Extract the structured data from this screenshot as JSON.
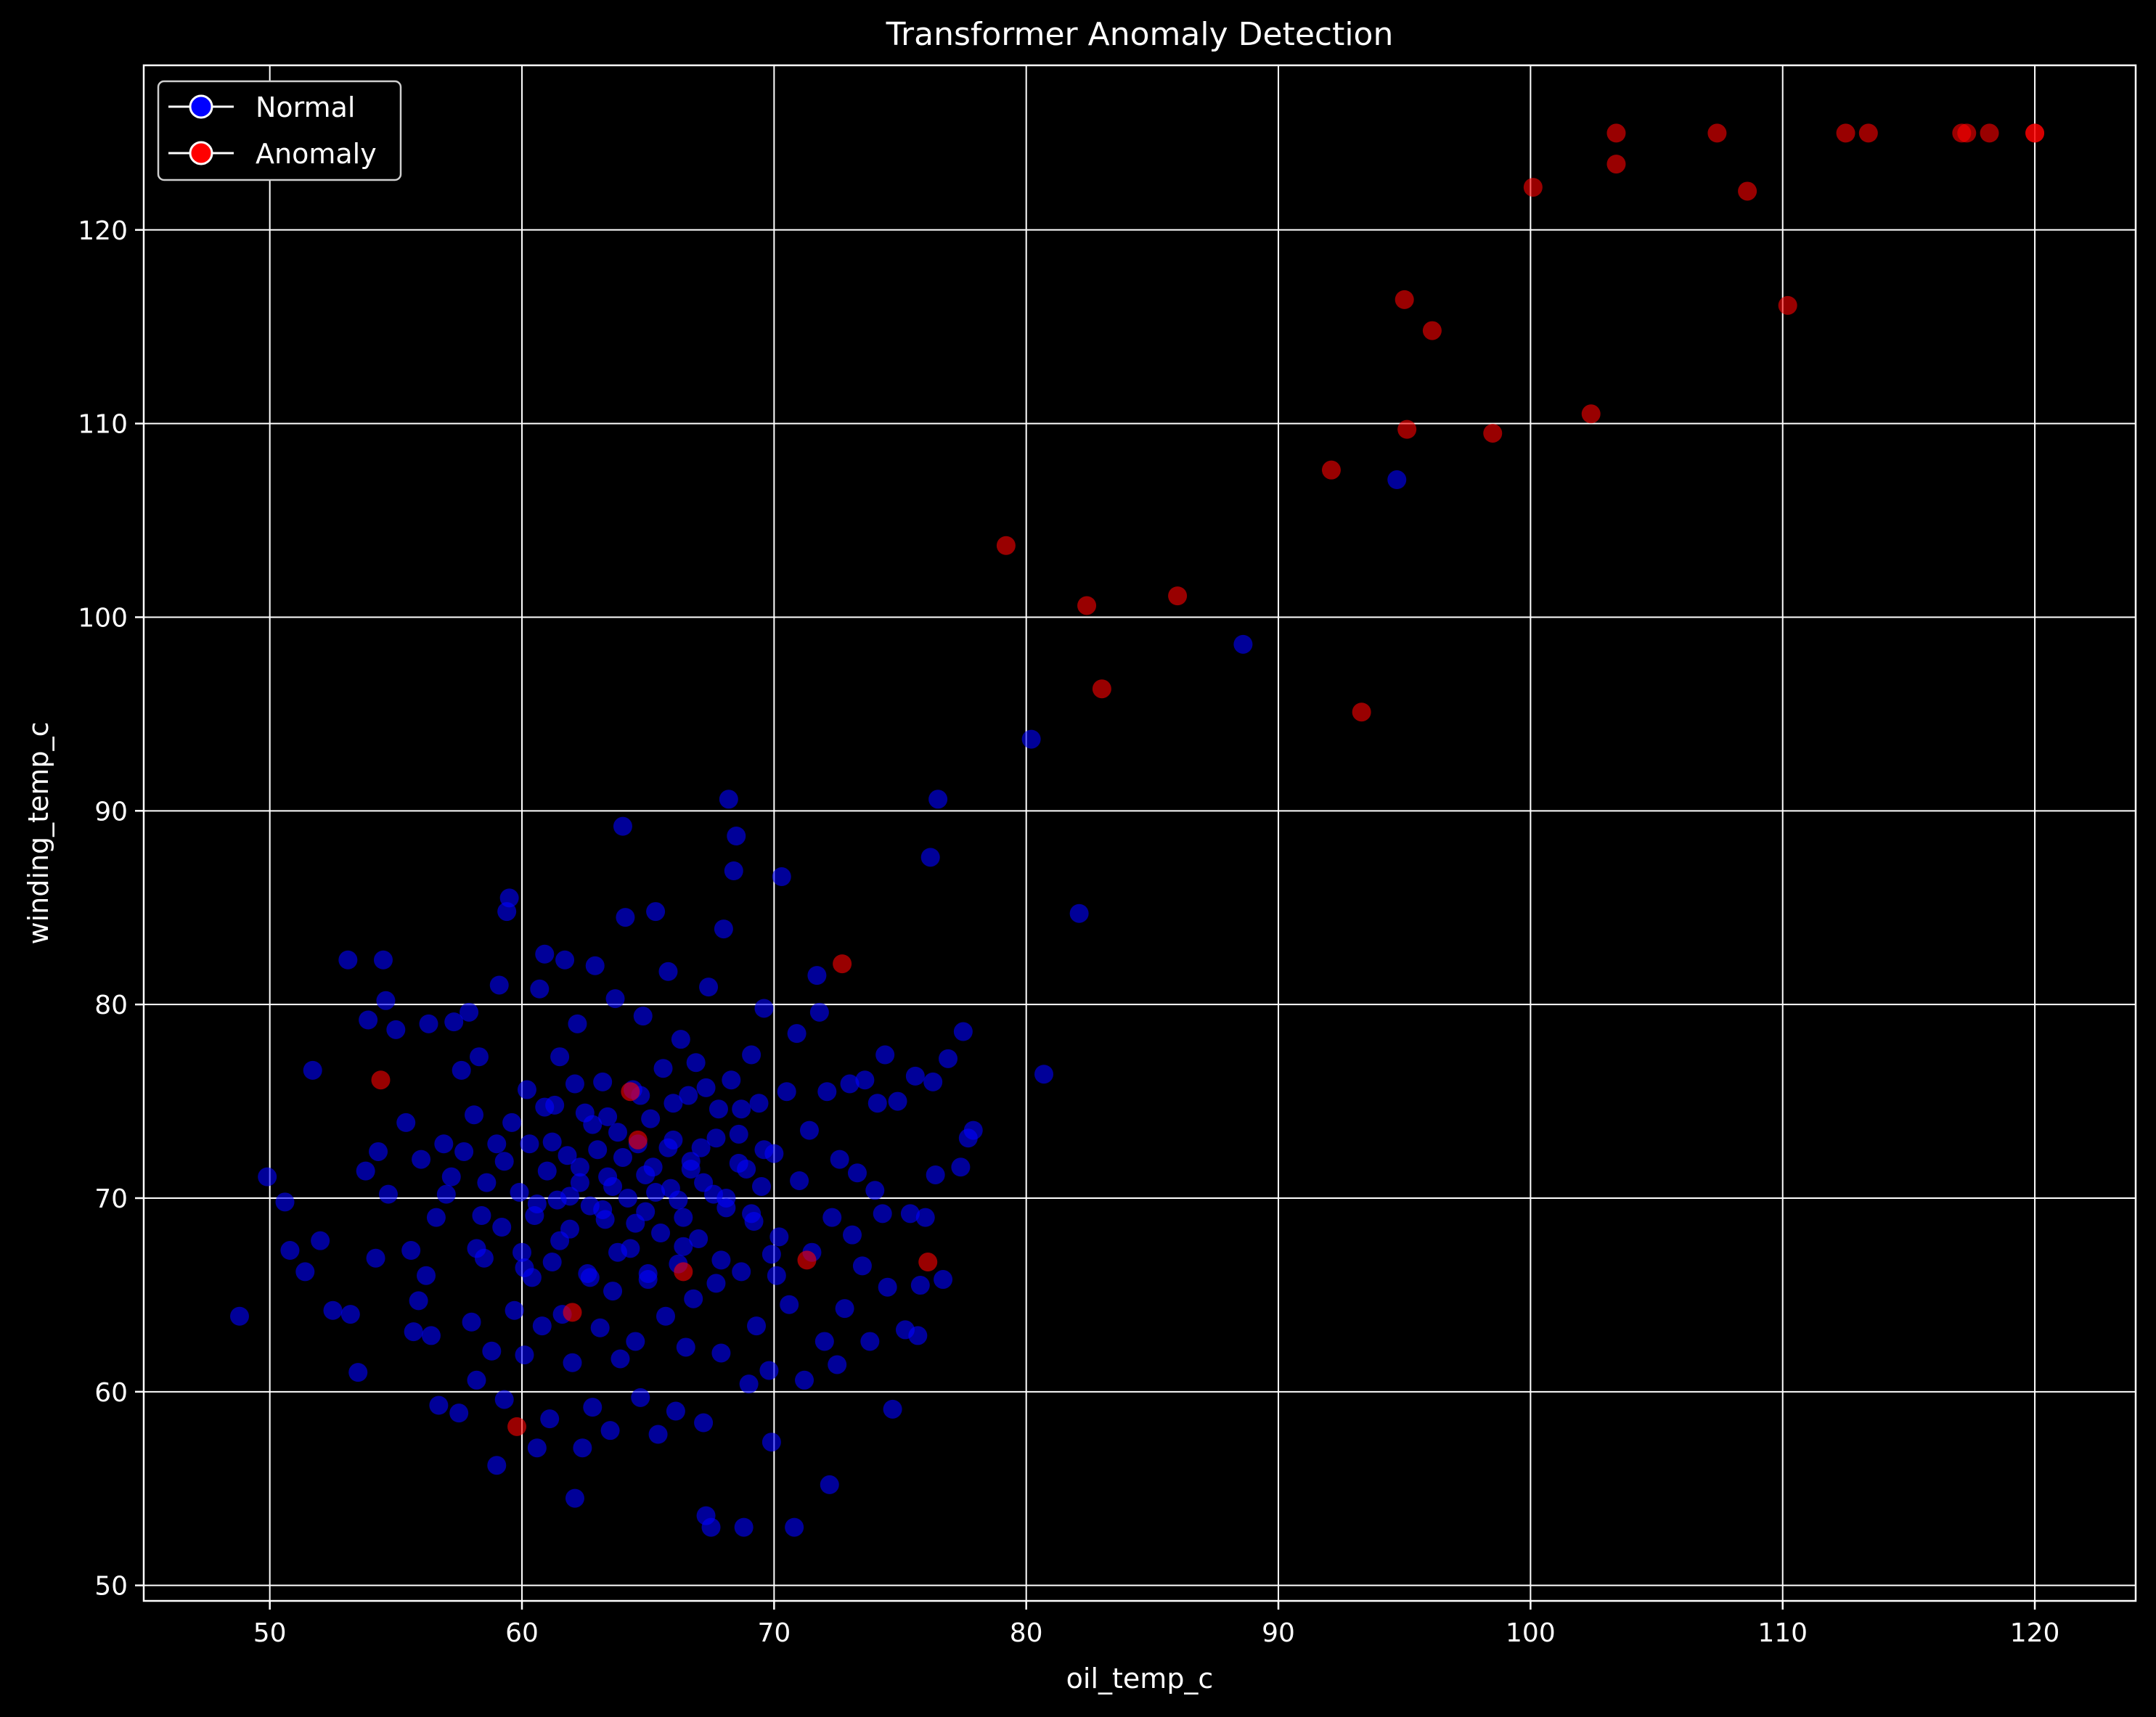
{
  "chart_data": {
    "type": "scatter",
    "title": "Transformer Anomaly Detection",
    "xlabel": "oil_temp_c",
    "ylabel": "winding_temp_c",
    "xlim": [
      45,
      124
    ],
    "ylim": [
      49.2,
      128.5
    ],
    "xticks": [
      50,
      60,
      70,
      80,
      90,
      100,
      110,
      120
    ],
    "yticks": [
      50,
      60,
      70,
      80,
      90,
      100,
      110,
      120
    ],
    "grid": true,
    "legend_position": "top-left",
    "background": "#000000",
    "series": [
      {
        "name": "Normal",
        "color": "#0000ff",
        "points": [
          [
            48.8,
            63.9
          ],
          [
            49.9,
            71.1
          ],
          [
            50.6,
            69.8
          ],
          [
            50.8,
            67.3
          ],
          [
            51.4,
            66.2
          ],
          [
            51.7,
            76.6
          ],
          [
            52.0,
            67.8
          ],
          [
            52.5,
            64.2
          ],
          [
            53.1,
            82.3
          ],
          [
            53.2,
            64.0
          ],
          [
            53.5,
            61.0
          ],
          [
            53.8,
            71.4
          ],
          [
            53.9,
            79.2
          ],
          [
            54.2,
            66.9
          ],
          [
            54.3,
            72.4
          ],
          [
            54.5,
            82.3
          ],
          [
            54.6,
            80.2
          ],
          [
            54.7,
            70.2
          ],
          [
            55.0,
            78.7
          ],
          [
            55.4,
            73.9
          ],
          [
            55.6,
            67.3
          ],
          [
            55.7,
            63.1
          ],
          [
            55.9,
            64.7
          ],
          [
            56.0,
            72.0
          ],
          [
            56.2,
            66.0
          ],
          [
            56.3,
            79.0
          ],
          [
            56.4,
            62.9
          ],
          [
            56.6,
            69.0
          ],
          [
            56.7,
            59.3
          ],
          [
            56.9,
            72.8
          ],
          [
            57.2,
            71.1
          ],
          [
            57.3,
            79.1
          ],
          [
            57.5,
            58.9
          ],
          [
            57.6,
            76.6
          ],
          [
            57.7,
            72.4
          ],
          [
            57.9,
            79.6
          ],
          [
            58.0,
            63.6
          ],
          [
            58.1,
            74.3
          ],
          [
            58.2,
            60.6
          ],
          [
            58.3,
            77.3
          ],
          [
            58.5,
            66.9
          ],
          [
            58.6,
            70.8
          ],
          [
            58.8,
            62.1
          ],
          [
            59.0,
            56.2
          ],
          [
            59.1,
            81.0
          ],
          [
            59.2,
            68.5
          ],
          [
            59.3,
            59.6
          ],
          [
            59.4,
            84.8
          ],
          [
            59.5,
            85.5
          ],
          [
            59.6,
            73.9
          ],
          [
            59.7,
            64.2
          ],
          [
            59.9,
            70.3
          ],
          [
            60.0,
            67.2
          ],
          [
            60.1,
            61.9
          ],
          [
            60.2,
            75.6
          ],
          [
            60.3,
            72.8
          ],
          [
            60.4,
            65.9
          ],
          [
            60.5,
            69.1
          ],
          [
            60.6,
            57.1
          ],
          [
            60.7,
            80.8
          ],
          [
            60.8,
            63.4
          ],
          [
            60.9,
            82.6
          ],
          [
            61.0,
            71.4
          ],
          [
            61.1,
            58.6
          ],
          [
            61.2,
            66.7
          ],
          [
            61.3,
            74.8
          ],
          [
            61.4,
            69.9
          ],
          [
            61.5,
            77.3
          ],
          [
            61.6,
            64.0
          ],
          [
            61.7,
            82.3
          ],
          [
            61.8,
            72.2
          ],
          [
            61.9,
            68.4
          ],
          [
            62.0,
            61.5
          ],
          [
            62.1,
            54.5
          ],
          [
            62.2,
            79.0
          ],
          [
            62.3,
            70.8
          ],
          [
            62.4,
            57.1
          ],
          [
            62.5,
            74.4
          ],
          [
            62.6,
            66.1
          ],
          [
            62.7,
            69.6
          ],
          [
            62.8,
            59.2
          ],
          [
            62.9,
            82.0
          ],
          [
            63.0,
            72.5
          ],
          [
            63.1,
            63.3
          ],
          [
            63.2,
            76.0
          ],
          [
            63.3,
            68.9
          ],
          [
            63.4,
            71.1
          ],
          [
            63.5,
            58.0
          ],
          [
            63.6,
            65.2
          ],
          [
            63.7,
            80.3
          ],
          [
            63.8,
            73.4
          ],
          [
            63.9,
            61.7
          ],
          [
            64.0,
            89.2
          ],
          [
            64.1,
            84.5
          ],
          [
            64.2,
            70.0
          ],
          [
            64.3,
            67.4
          ],
          [
            64.4,
            75.6
          ],
          [
            64.5,
            62.6
          ],
          [
            64.6,
            72.8
          ],
          [
            64.7,
            59.7
          ],
          [
            64.8,
            79.4
          ],
          [
            64.9,
            69.3
          ],
          [
            65.0,
            65.8
          ],
          [
            65.1,
            74.1
          ],
          [
            65.2,
            71.6
          ],
          [
            65.3,
            84.8
          ],
          [
            65.4,
            57.8
          ],
          [
            65.5,
            68.2
          ],
          [
            65.6,
            76.7
          ],
          [
            65.7,
            63.9
          ],
          [
            65.8,
            81.7
          ],
          [
            65.9,
            70.5
          ],
          [
            66.0,
            73.0
          ],
          [
            66.1,
            59.0
          ],
          [
            66.2,
            66.6
          ],
          [
            66.3,
            78.2
          ],
          [
            66.4,
            69.0
          ],
          [
            66.5,
            62.3
          ],
          [
            66.6,
            75.3
          ],
          [
            66.7,
            71.9
          ],
          [
            66.8,
            64.8
          ],
          [
            66.9,
            77.0
          ],
          [
            67.0,
            67.9
          ],
          [
            67.1,
            72.6
          ],
          [
            67.2,
            58.4
          ],
          [
            67.3,
            53.6
          ],
          [
            67.4,
            80.9
          ],
          [
            67.5,
            53.0
          ],
          [
            67.6,
            70.2
          ],
          [
            67.7,
            65.6
          ],
          [
            67.8,
            74.6
          ],
          [
            67.9,
            62.0
          ],
          [
            68.0,
            83.9
          ],
          [
            68.1,
            69.5
          ],
          [
            68.2,
            90.6
          ],
          [
            68.3,
            76.1
          ],
          [
            68.4,
            86.9
          ],
          [
            68.5,
            88.7
          ],
          [
            68.6,
            73.3
          ],
          [
            68.7,
            66.2
          ],
          [
            68.8,
            53.0
          ],
          [
            68.9,
            71.5
          ],
          [
            69.0,
            60.4
          ],
          [
            69.1,
            77.4
          ],
          [
            69.2,
            68.8
          ],
          [
            69.3,
            63.4
          ],
          [
            69.4,
            74.9
          ],
          [
            69.5,
            70.6
          ],
          [
            69.6,
            79.8
          ],
          [
            69.8,
            61.1
          ],
          [
            69.9,
            57.4
          ],
          [
            70.0,
            72.3
          ],
          [
            70.1,
            66.0
          ],
          [
            70.2,
            68.0
          ],
          [
            70.3,
            86.6
          ],
          [
            70.5,
            75.5
          ],
          [
            70.6,
            64.5
          ],
          [
            70.8,
            53.0
          ],
          [
            70.9,
            78.5
          ],
          [
            71.0,
            70.9
          ],
          [
            71.2,
            60.6
          ],
          [
            71.4,
            73.5
          ],
          [
            71.5,
            67.2
          ],
          [
            71.7,
            81.5
          ],
          [
            71.8,
            79.6
          ],
          [
            72.0,
            62.6
          ],
          [
            72.1,
            75.5
          ],
          [
            72.2,
            55.2
          ],
          [
            72.3,
            69.0
          ],
          [
            72.5,
            61.4
          ],
          [
            72.6,
            72.0
          ],
          [
            72.8,
            64.3
          ],
          [
            73.0,
            75.9
          ],
          [
            73.1,
            68.1
          ],
          [
            73.3,
            71.3
          ],
          [
            73.5,
            66.5
          ],
          [
            73.6,
            76.1
          ],
          [
            73.8,
            62.6
          ],
          [
            74.0,
            70.4
          ],
          [
            74.1,
            74.9
          ],
          [
            74.3,
            69.2
          ],
          [
            74.4,
            77.4
          ],
          [
            74.5,
            65.4
          ],
          [
            74.7,
            59.1
          ],
          [
            74.9,
            75.0
          ],
          [
            75.2,
            63.2
          ],
          [
            75.4,
            69.2
          ],
          [
            75.6,
            76.3
          ],
          [
            75.7,
            62.9
          ],
          [
            75.8,
            65.5
          ],
          [
            76.0,
            69.0
          ],
          [
            76.2,
            87.6
          ],
          [
            76.3,
            76.0
          ],
          [
            76.4,
            71.2
          ],
          [
            76.5,
            90.6
          ],
          [
            76.7,
            65.8
          ],
          [
            76.9,
            77.2
          ],
          [
            77.4,
            71.6
          ],
          [
            77.5,
            78.6
          ],
          [
            77.7,
            73.1
          ],
          [
            77.9,
            73.5
          ],
          [
            80.2,
            93.7
          ],
          [
            80.7,
            76.4
          ],
          [
            82.1,
            84.7
          ],
          [
            88.6,
            98.6
          ],
          [
            94.7,
            107.1
          ],
          [
            57.0,
            70.2
          ],
          [
            58.4,
            69.1
          ],
          [
            59.3,
            71.9
          ],
          [
            60.6,
            69.7
          ],
          [
            61.2,
            72.9
          ],
          [
            61.9,
            70.1
          ],
          [
            62.3,
            71.6
          ],
          [
            62.8,
            73.8
          ],
          [
            63.2,
            69.4
          ],
          [
            63.6,
            70.6
          ],
          [
            64.0,
            72.1
          ],
          [
            64.5,
            68.7
          ],
          [
            64.9,
            71.2
          ],
          [
            65.3,
            70.3
          ],
          [
            65.8,
            72.6
          ],
          [
            66.2,
            69.9
          ],
          [
            66.7,
            71.5
          ],
          [
            67.2,
            70.8
          ],
          [
            67.7,
            73.1
          ],
          [
            68.1,
            70.0
          ],
          [
            68.6,
            71.8
          ],
          [
            69.1,
            69.2
          ],
          [
            69.6,
            72.5
          ],
          [
            60.1,
            66.4
          ],
          [
            61.5,
            67.8
          ],
          [
            62.7,
            65.9
          ],
          [
            63.8,
            67.2
          ],
          [
            65.0,
            66.1
          ],
          [
            66.4,
            67.5
          ],
          [
            67.9,
            66.8
          ],
          [
            60.9,
            74.7
          ],
          [
            62.1,
            75.9
          ],
          [
            63.4,
            74.2
          ],
          [
            64.7,
            75.3
          ],
          [
            66.0,
            74.9
          ],
          [
            67.3,
            75.7
          ],
          [
            68.7,
            74.6
          ],
          [
            59.0,
            72.8
          ],
          [
            58.2,
            67.4
          ],
          [
            69.9,
            67.1
          ]
        ]
      },
      {
        "name": "Anomaly",
        "color": "#ff0000",
        "points": [
          [
            54.4,
            76.1
          ],
          [
            59.8,
            58.2
          ],
          [
            62.0,
            64.1
          ],
          [
            64.3,
            75.5
          ],
          [
            64.6,
            73.0
          ],
          [
            66.4,
            66.2
          ],
          [
            71.3,
            66.8
          ],
          [
            72.7,
            82.1
          ],
          [
            76.1,
            66.7
          ],
          [
            79.2,
            103.7
          ],
          [
            82.4,
            100.6
          ],
          [
            83.0,
            96.3
          ],
          [
            86.0,
            101.1
          ],
          [
            92.1,
            107.6
          ],
          [
            93.3,
            95.1
          ],
          [
            95.0,
            116.4
          ],
          [
            95.1,
            109.7
          ],
          [
            96.1,
            114.8
          ],
          [
            98.5,
            109.5
          ],
          [
            100.1,
            122.2
          ],
          [
            102.4,
            110.5
          ],
          [
            103.4,
            125.0
          ],
          [
            103.4,
            123.4
          ],
          [
            107.4,
            125.0
          ],
          [
            108.6,
            122.0
          ],
          [
            110.2,
            116.1
          ],
          [
            112.5,
            125.0
          ],
          [
            113.4,
            125.0
          ],
          [
            117.1,
            125.0
          ],
          [
            117.3,
            125.0
          ],
          [
            118.2,
            125.0
          ],
          [
            120.0,
            125.0
          ],
          [
            120.0,
            125.0
          ]
        ]
      }
    ]
  }
}
